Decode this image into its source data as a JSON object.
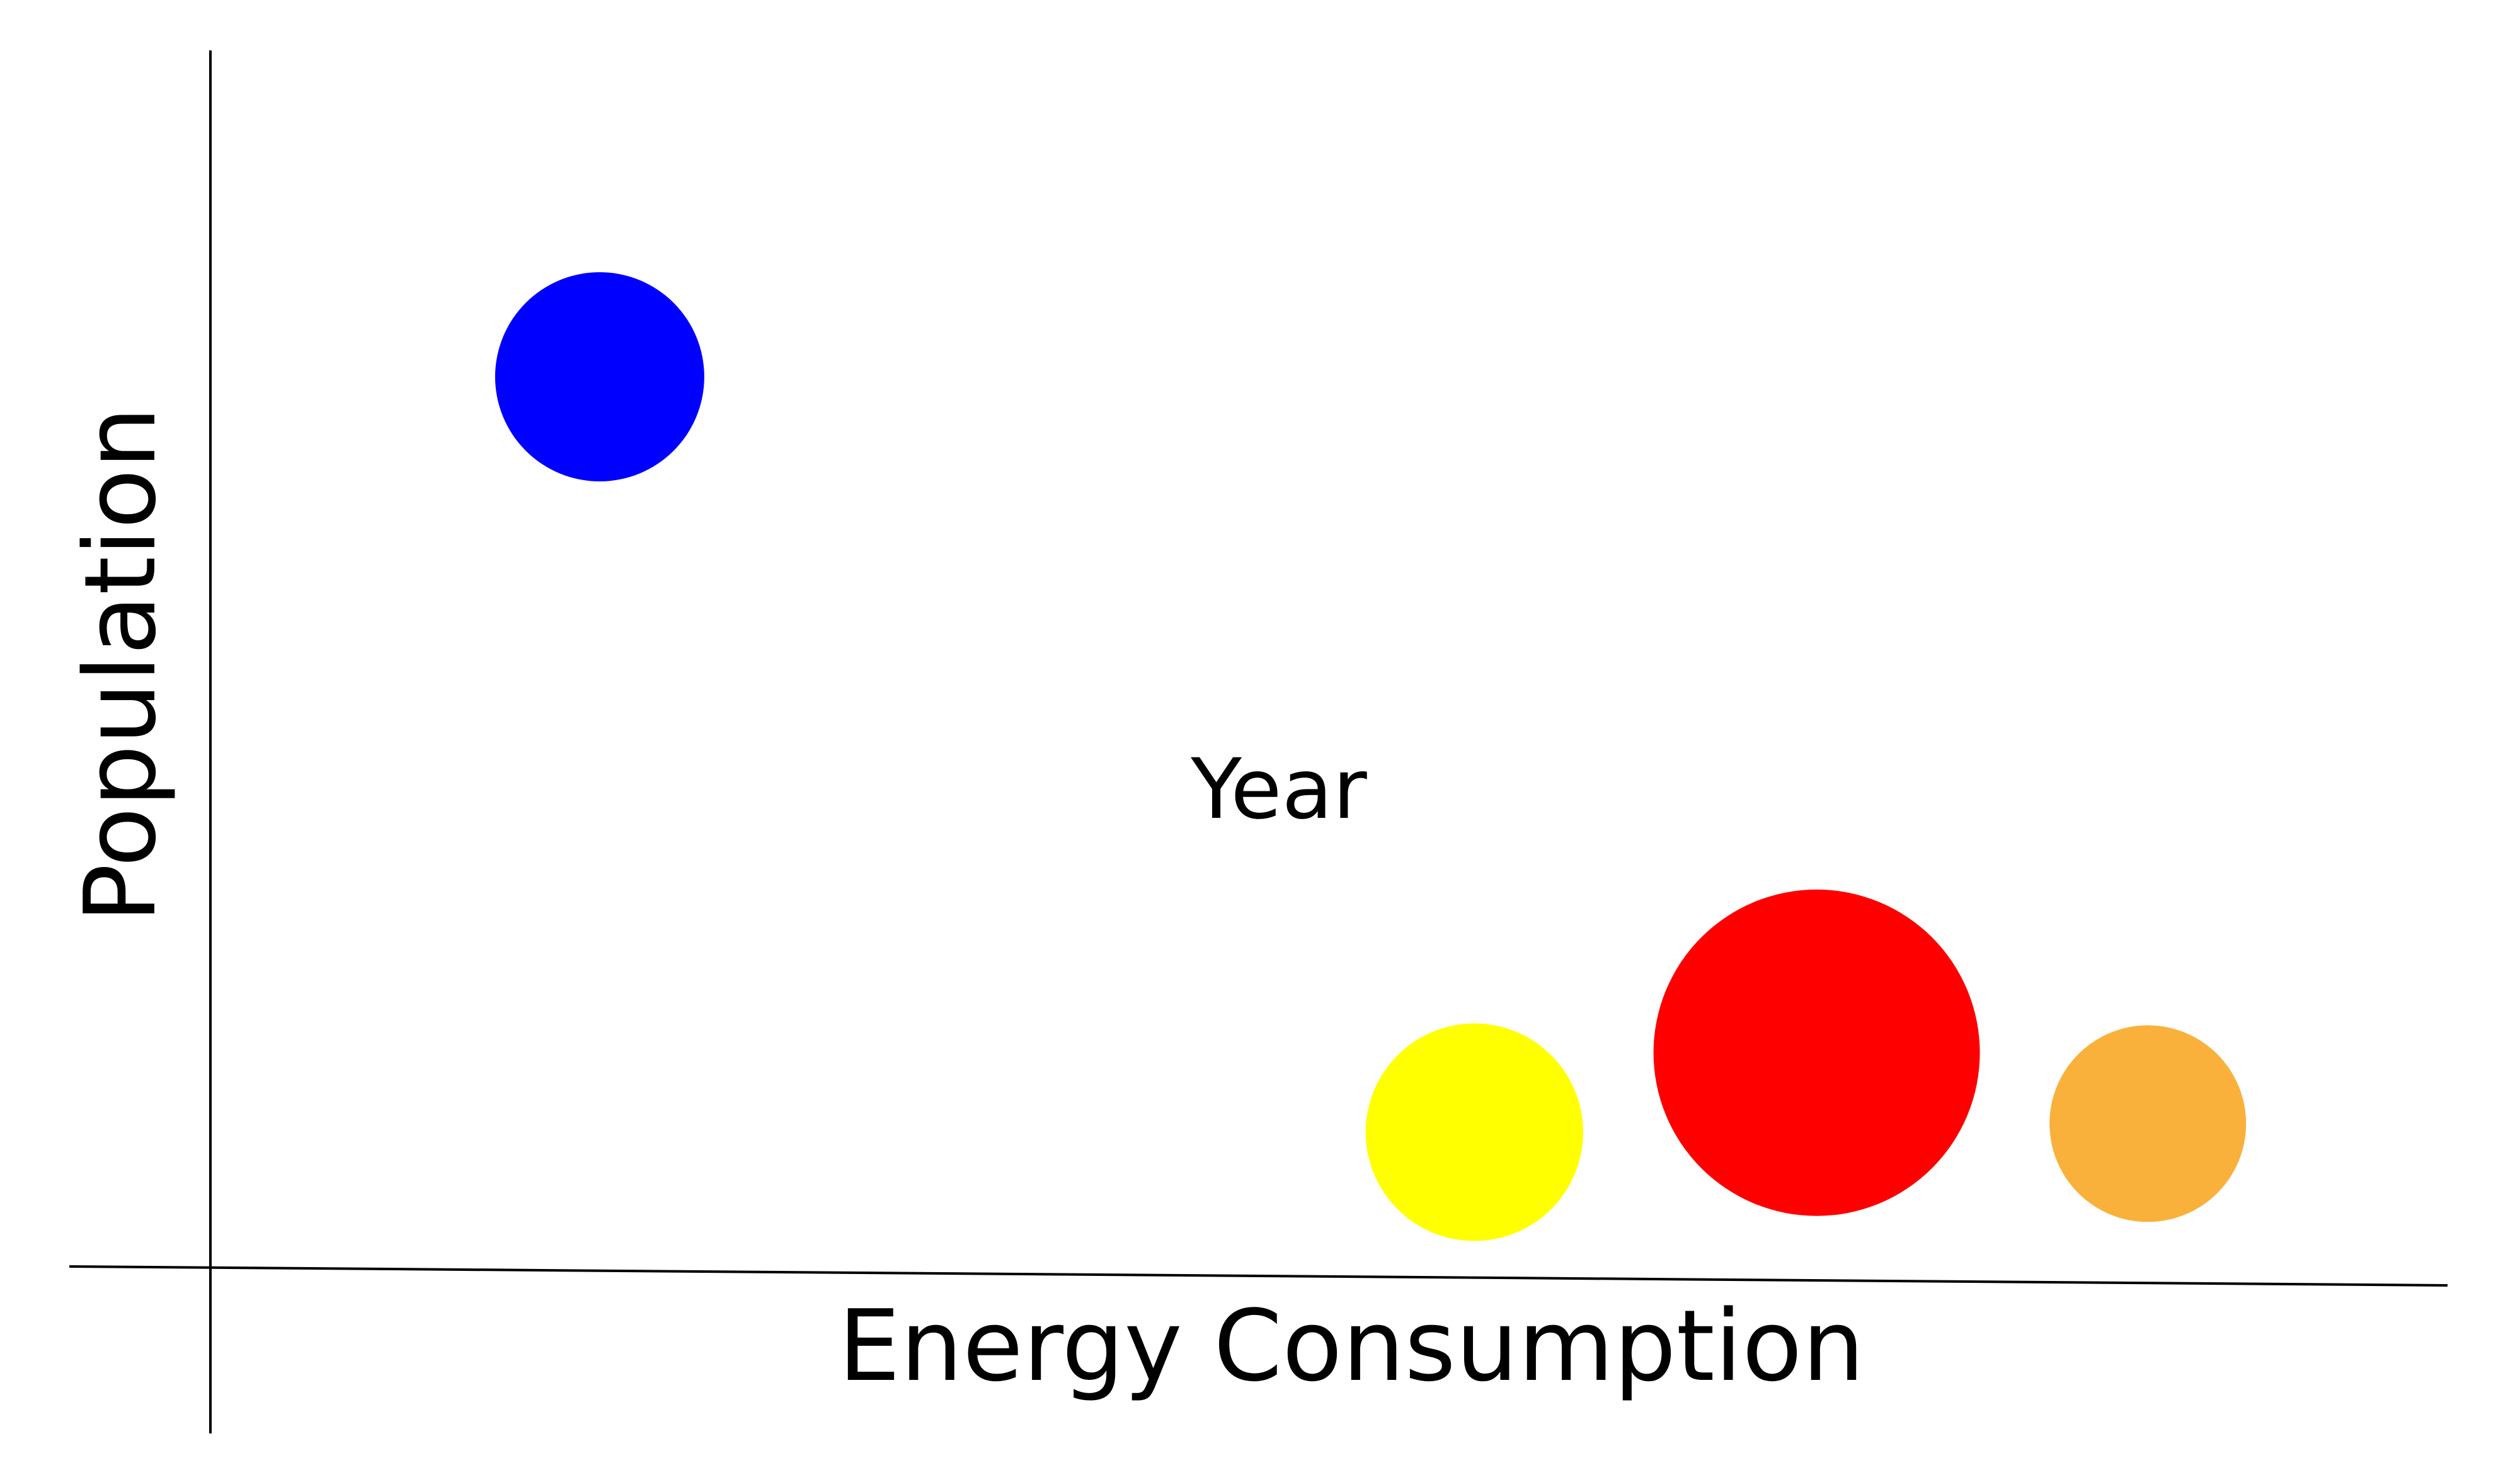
{
  "chart_data": {
    "type": "scatter",
    "title": "",
    "xlabel": "Energy Consumption",
    "ylabel": "Population",
    "annotation": "Year",
    "xlim": [
      0,
      100
    ],
    "ylim": [
      0,
      100
    ],
    "grid": false,
    "legend": "none",
    "series": [
      {
        "points": [
          {
            "x": 17.4,
            "y": 73.3,
            "size": 1.0,
            "color": "#0000ff"
          },
          {
            "x": 56.5,
            "y": 11.5,
            "size": 1.04,
            "color": "#ffff00"
          },
          {
            "x": 71.8,
            "y": 18.0,
            "size": 1.56,
            "color": "#ff0000"
          },
          {
            "x": 86.6,
            "y": 12.2,
            "size": 0.94,
            "color": "#f9b13c"
          }
        ]
      }
    ]
  }
}
